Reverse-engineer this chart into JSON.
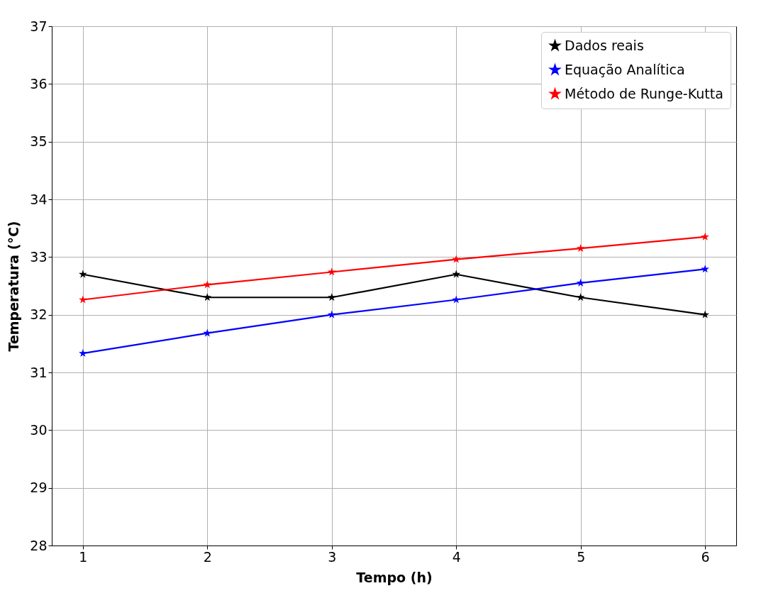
{
  "chart_data": {
    "type": "line",
    "xlabel": "Tempo (h)",
    "ylabel": "Temperatura (°C)",
    "x": [
      1,
      2,
      3,
      4,
      5,
      6
    ],
    "series": [
      {
        "name": "Dados reais",
        "color": "#000000",
        "values": [
          32.7,
          32.3,
          32.3,
          32.7,
          32.3,
          32.0
        ]
      },
      {
        "name": "Equação Analítica",
        "color": "#0000ff",
        "values": [
          31.33,
          31.68,
          32.0,
          32.26,
          32.55,
          32.79
        ]
      },
      {
        "name": "Método de Runge-Kutta",
        "color": "#ff0000",
        "values": [
          32.26,
          32.52,
          32.74,
          32.96,
          33.15,
          33.35
        ]
      }
    ],
    "xlim": [
      0.75,
      6.25
    ],
    "xticks": [
      1,
      2,
      3,
      4,
      5,
      6
    ],
    "ylim": [
      28,
      37
    ],
    "yticks": [
      28,
      29,
      30,
      31,
      32,
      33,
      34,
      35,
      36,
      37
    ],
    "grid": true,
    "legend": "top right",
    "marker": "star",
    "line_style": "solid"
  }
}
